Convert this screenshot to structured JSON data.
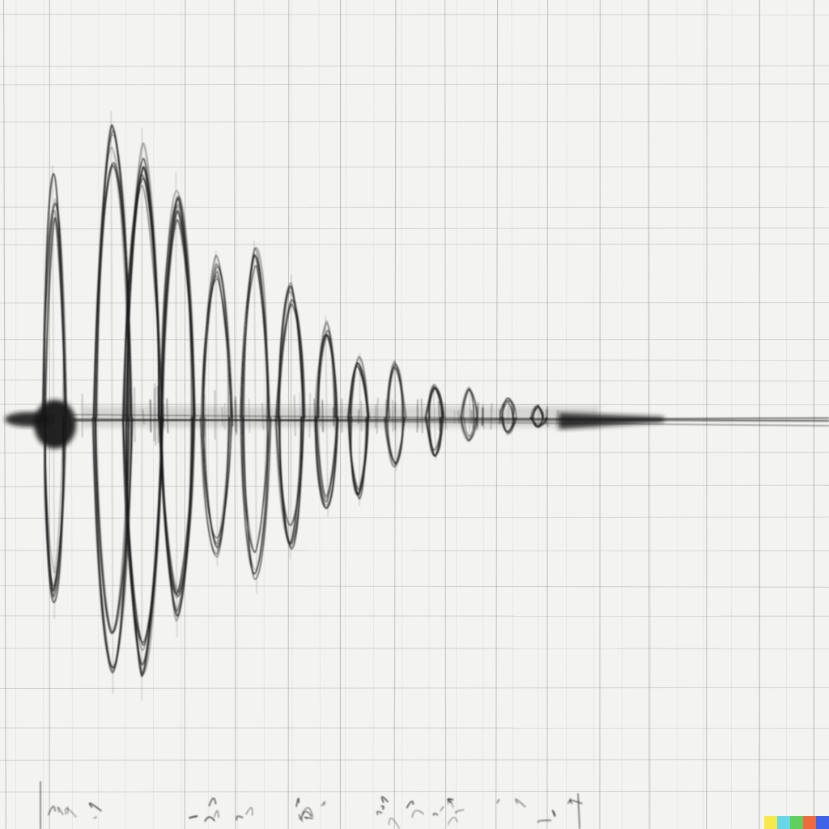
{
  "scene": {
    "subject": "hand-drawn-seismograph-waveform",
    "medium": "pencil",
    "background_color": "#f3f3f1",
    "grid_color": "#9a9a9a",
    "ink_color": "#151515"
  },
  "trace": {
    "bursts": [
      {
        "amp_up": 0.74,
        "amp_down": 0.57,
        "width": 0.5
      },
      {
        "amp_up": 0.9,
        "amp_down": 0.78,
        "width": 1.0
      },
      {
        "amp_up": 0.85,
        "amp_down": 0.8,
        "width": 1.0
      },
      {
        "amp_up": 0.72,
        "amp_down": 0.62,
        "width": 0.9
      },
      {
        "amp_up": 0.49,
        "amp_down": 0.42,
        "width": 0.75
      },
      {
        "amp_up": 0.52,
        "amp_down": 0.5,
        "width": 0.7
      },
      {
        "amp_up": 0.42,
        "amp_down": 0.4,
        "width": 0.65
      },
      {
        "amp_up": 0.3,
        "amp_down": 0.28,
        "width": 0.45
      },
      {
        "amp_up": 0.19,
        "amp_down": 0.25,
        "width": 0.35
      },
      {
        "amp_up": 0.17,
        "amp_down": 0.15,
        "width": 0.35
      },
      {
        "amp_up": 0.1,
        "amp_down": 0.12,
        "width": 0.3
      },
      {
        "amp_up": 0.09,
        "amp_down": 0.07,
        "width": 0.25
      },
      {
        "amp_up": 0.06,
        "amp_down": 0.05,
        "width": 0.25
      },
      {
        "amp_up": 0.04,
        "amp_down": 0.03,
        "width": 0.2
      }
    ]
  },
  "watermark": {
    "colors": [
      "#f7e94a",
      "#67d7e8",
      "#5fd05c",
      "#ef6a3c",
      "#3f63e8"
    ]
  }
}
